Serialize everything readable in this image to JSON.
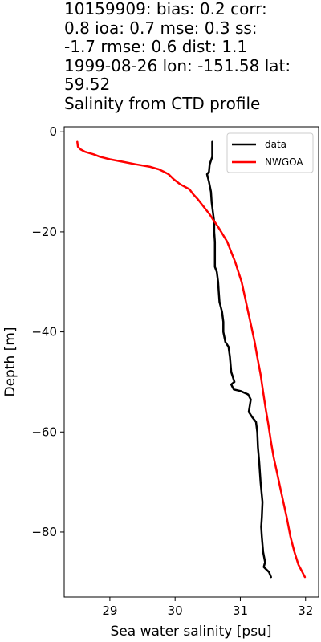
{
  "title": {
    "line1": "10159909: bias: 0.2  corr:",
    "line2": "0.8  ioa: 0.7  mse: 0.3  ss:",
    "line3": "-1.7  rmse: 0.6  dist: 1.1",
    "line4": "1999-08-26 lon: -151.58 lat:",
    "line5": "59.52",
    "line6": "Salinity from CTD profile"
  },
  "chart_data": {
    "type": "line",
    "xlabel": "Sea water salinity [psu]",
    "ylabel": "Depth [m]",
    "xlim": [
      28.3,
      32.2
    ],
    "ylim": [
      -93,
      1
    ],
    "xticks": [
      29,
      30,
      31,
      32
    ],
    "yticks": [
      0,
      -20,
      -40,
      -60,
      -80
    ],
    "ytick_labels": [
      "0",
      "−20",
      "−40",
      "−60",
      "−80"
    ],
    "grid": false,
    "legend_position": "top-right",
    "series": [
      {
        "name": "data",
        "color": "#000000",
        "points": [
          [
            30.57,
            -2
          ],
          [
            30.57,
            -5
          ],
          [
            30.53,
            -6.5
          ],
          [
            30.52,
            -8
          ],
          [
            30.49,
            -8.5
          ],
          [
            30.52,
            -10
          ],
          [
            30.55,
            -12
          ],
          [
            30.56,
            -14
          ],
          [
            30.58,
            -16
          ],
          [
            30.6,
            -18
          ],
          [
            30.6,
            -20
          ],
          [
            30.61,
            -22
          ],
          [
            30.61,
            -24
          ],
          [
            30.61,
            -26
          ],
          [
            30.61,
            -27
          ],
          [
            30.64,
            -28
          ],
          [
            30.66,
            -30
          ],
          [
            30.67,
            -32
          ],
          [
            30.68,
            -34
          ],
          [
            30.72,
            -36
          ],
          [
            30.74,
            -38
          ],
          [
            30.74,
            -40
          ],
          [
            30.77,
            -42
          ],
          [
            30.82,
            -43
          ],
          [
            30.84,
            -45
          ],
          [
            30.86,
            -48
          ],
          [
            30.91,
            -50
          ],
          [
            30.86,
            -50.5
          ],
          [
            30.9,
            -51.5
          ],
          [
            31.0,
            -51.8
          ],
          [
            31.12,
            -52.5
          ],
          [
            31.16,
            -53.5
          ],
          [
            31.13,
            -56
          ],
          [
            31.18,
            -57
          ],
          [
            31.24,
            -58
          ],
          [
            31.26,
            -60
          ],
          [
            31.27,
            -63
          ],
          [
            31.29,
            -66
          ],
          [
            31.31,
            -70
          ],
          [
            31.34,
            -74
          ],
          [
            31.33,
            -77
          ],
          [
            31.32,
            -79
          ],
          [
            31.33,
            -81
          ],
          [
            31.35,
            -84
          ],
          [
            31.38,
            -86
          ],
          [
            31.36,
            -87
          ],
          [
            31.44,
            -88
          ],
          [
            31.47,
            -89
          ]
        ]
      },
      {
        "name": "NWGOA",
        "color": "#ff0000",
        "points": [
          [
            28.5,
            -2
          ],
          [
            28.51,
            -3
          ],
          [
            28.55,
            -3.5
          ],
          [
            28.62,
            -4
          ],
          [
            28.75,
            -4.5
          ],
          [
            28.85,
            -5
          ],
          [
            29.0,
            -5.5
          ],
          [
            29.2,
            -6
          ],
          [
            29.4,
            -6.5
          ],
          [
            29.62,
            -7
          ],
          [
            29.75,
            -7.5
          ],
          [
            29.83,
            -8
          ],
          [
            29.9,
            -8.5
          ],
          [
            29.98,
            -9.5
          ],
          [
            30.08,
            -10.5
          ],
          [
            30.22,
            -11.5
          ],
          [
            30.28,
            -12.5
          ],
          [
            30.35,
            -13.5
          ],
          [
            30.41,
            -14.5
          ],
          [
            30.47,
            -15.5
          ],
          [
            30.53,
            -16.5
          ],
          [
            30.58,
            -17.5
          ],
          [
            30.66,
            -19
          ],
          [
            30.73,
            -20.5
          ],
          [
            30.8,
            -22
          ],
          [
            30.86,
            -24
          ],
          [
            30.92,
            -26
          ],
          [
            30.97,
            -28
          ],
          [
            31.02,
            -30
          ],
          [
            31.07,
            -33
          ],
          [
            31.12,
            -36
          ],
          [
            31.17,
            -39
          ],
          [
            31.22,
            -42
          ],
          [
            31.26,
            -45
          ],
          [
            31.31,
            -48.5
          ],
          [
            31.35,
            -52
          ],
          [
            31.39,
            -55.5
          ],
          [
            31.43,
            -58.5
          ],
          [
            31.47,
            -62
          ],
          [
            31.51,
            -65
          ],
          [
            31.56,
            -68
          ],
          [
            31.61,
            -71
          ],
          [
            31.66,
            -74
          ],
          [
            31.71,
            -77
          ],
          [
            31.77,
            -81
          ],
          [
            31.83,
            -84
          ],
          [
            31.89,
            -86.5
          ],
          [
            31.95,
            -88
          ],
          [
            31.99,
            -89
          ]
        ]
      }
    ]
  }
}
